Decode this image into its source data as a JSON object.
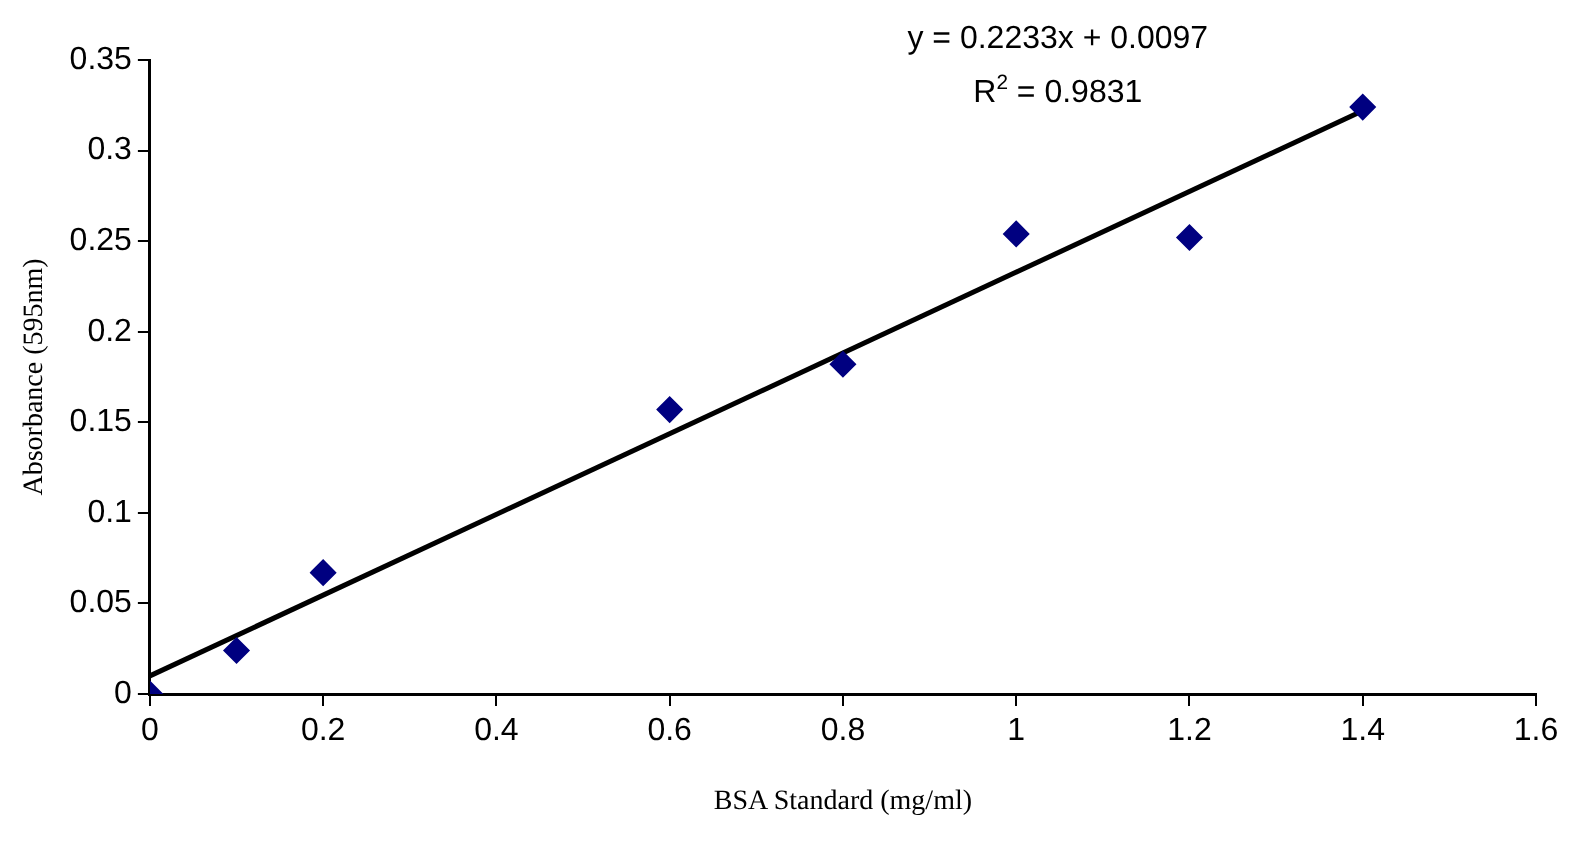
{
  "chart_data": {
    "type": "scatter",
    "xlabel": "BSA Standard (mg/ml)",
    "ylabel": "Absorbance (595nm)",
    "x": [
      0,
      0.1,
      0.2,
      0.6,
      0.8,
      1,
      1.2,
      1.4
    ],
    "series": [
      {
        "color": "#000080",
        "marker": "diamond",
        "values": [
          0,
          0.024,
          0.067,
          0.157,
          0.182,
          0.254,
          0.252,
          0.324
        ]
      },
      {
        "type": "line",
        "color": "#000000",
        "marker": "none",
        "x": [
          0,
          1.4
        ],
        "values": [
          0.01,
          0.322
        ]
      }
    ],
    "annotations": [
      "y = 0.2233x + 0.0097",
      "R$^{2}$ = 0.9831"
    ],
    "xlim": [
      0,
      1.6
    ],
    "xticks": [
      0,
      0.2,
      0.4,
      0.6,
      0.8,
      1,
      1.2,
      1.4,
      1.6
    ],
    "ylim": [
      0,
      0.35
    ],
    "yticks": [
      0,
      0.05,
      0.1,
      0.15,
      0.2,
      0.25,
      0.3,
      0.35
    ],
    "grid": false,
    "legend": false
  }
}
